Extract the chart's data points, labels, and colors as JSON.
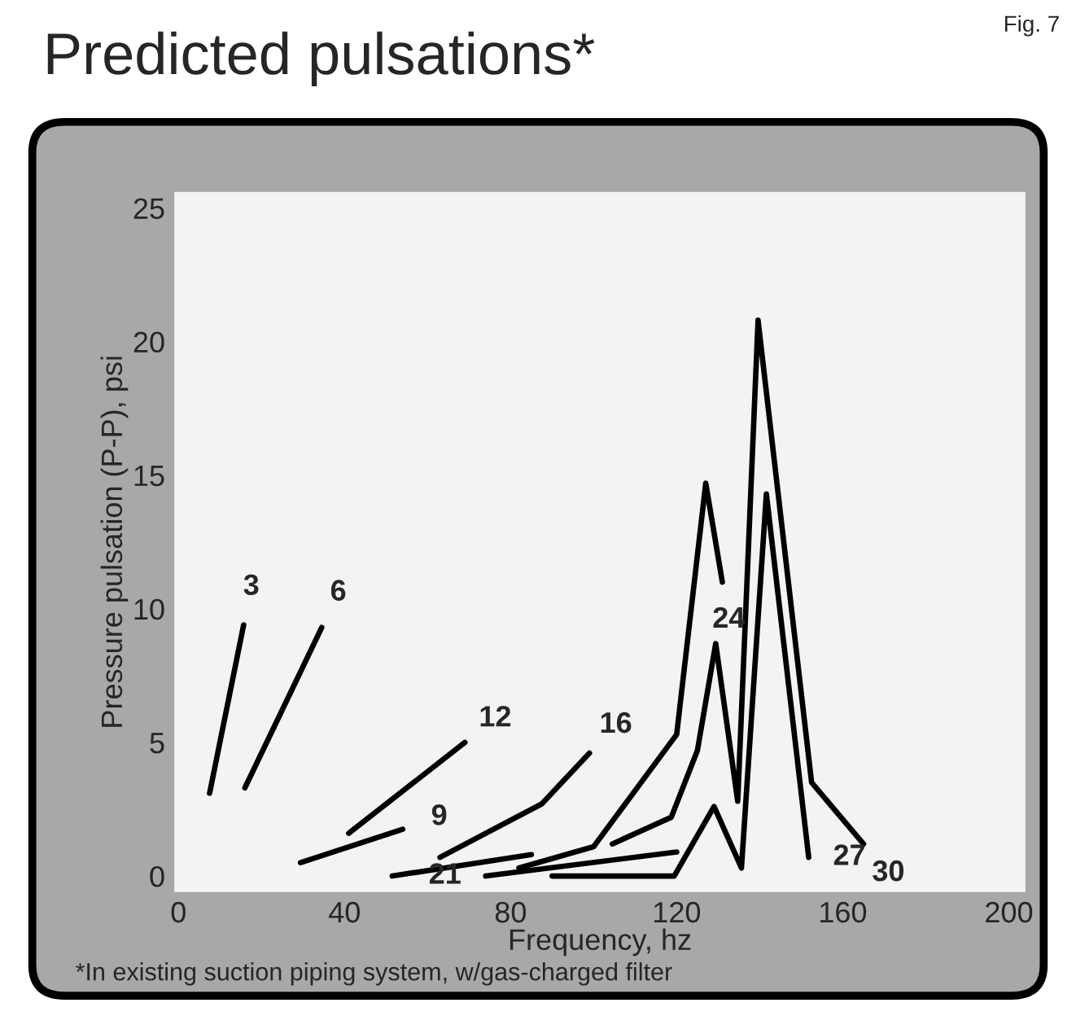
{
  "chart_data": {
    "type": "line",
    "title": "Predicted pulsations*",
    "xlabel": "Frequency, hz",
    "ylabel": "Pressure pulsation (P-P), psi",
    "xlim": [
      -1,
      204
    ],
    "ylim": [
      -0.6,
      25.6
    ],
    "xticks": [
      0,
      40,
      80,
      120,
      160,
      200
    ],
    "yticks": [
      0,
      5,
      10,
      15,
      20,
      25
    ],
    "grid": false,
    "legend": false,
    "marker": "none",
    "line_style": "solid",
    "series": [
      {
        "color": "#000000",
        "x": [
          7.5,
          15.7
        ],
        "values": [
          3.1,
          9.4
        ]
      },
      {
        "color": "#000000",
        "x": [
          16,
          34.5
        ],
        "values": [
          3.3,
          9.3
        ]
      },
      {
        "color": "#000000",
        "x": [
          29.4,
          54
        ],
        "values": [
          0.5,
          1.75
        ]
      },
      {
        "color": "#000000",
        "x": [
          41,
          69
        ],
        "values": [
          1.6,
          5.0
        ]
      },
      {
        "color": "#000000",
        "x": [
          63,
          87.5,
          99
        ],
        "values": [
          0.7,
          2.7,
          4.6
        ]
      },
      {
        "color": "#000000",
        "x": [
          51.5,
          85
        ],
        "values": [
          0,
          0.8
        ]
      },
      {
        "color": "#000000",
        "x": [
          74,
          120
        ],
        "values": [
          0,
          0.9
        ]
      },
      {
        "color": "#000000",
        "x": [
          82,
          100,
          120,
          127,
          131
        ],
        "values": [
          0.3,
          1.1,
          5.3,
          14.7,
          11.0
        ]
      },
      {
        "color": "#000000",
        "x": [
          90,
          119.4,
          129,
          135.6,
          141.6,
          151.8
        ],
        "values": [
          0,
          0,
          2.6,
          0.3,
          14.3,
          0.7
        ]
      },
      {
        "color": "#000000",
        "x": [
          104.5,
          118.7,
          125,
          129.4,
          134.7,
          139.6,
          152.5,
          165
        ],
        "values": [
          1.2,
          2.2,
          4.7,
          8.7,
          2.8,
          20.8,
          3.5,
          1.2
        ]
      }
    ],
    "annotations": [
      {
        "text": "3",
        "x": 15.7,
        "y": 9.4
      },
      {
        "text": "6",
        "x": 34.5,
        "y": 9.3
      },
      {
        "text": "12",
        "x": 69,
        "y": 5.0
      },
      {
        "text": "9",
        "x": 54,
        "y": 1.75
      },
      {
        "text": "21",
        "x": 74,
        "y": 0
      },
      {
        "text": "16",
        "x": 99,
        "y": 4.6
      },
      {
        "text": "24",
        "x": 131,
        "y": 11.0
      },
      {
        "text": "27",
        "x": 151.8,
        "y": 0.7
      },
      {
        "text": "30",
        "x": 165,
        "y": 1.2
      },
      "Fig. 7",
      "*In existing suction piping system, w/gas-charged filter"
    ]
  }
}
